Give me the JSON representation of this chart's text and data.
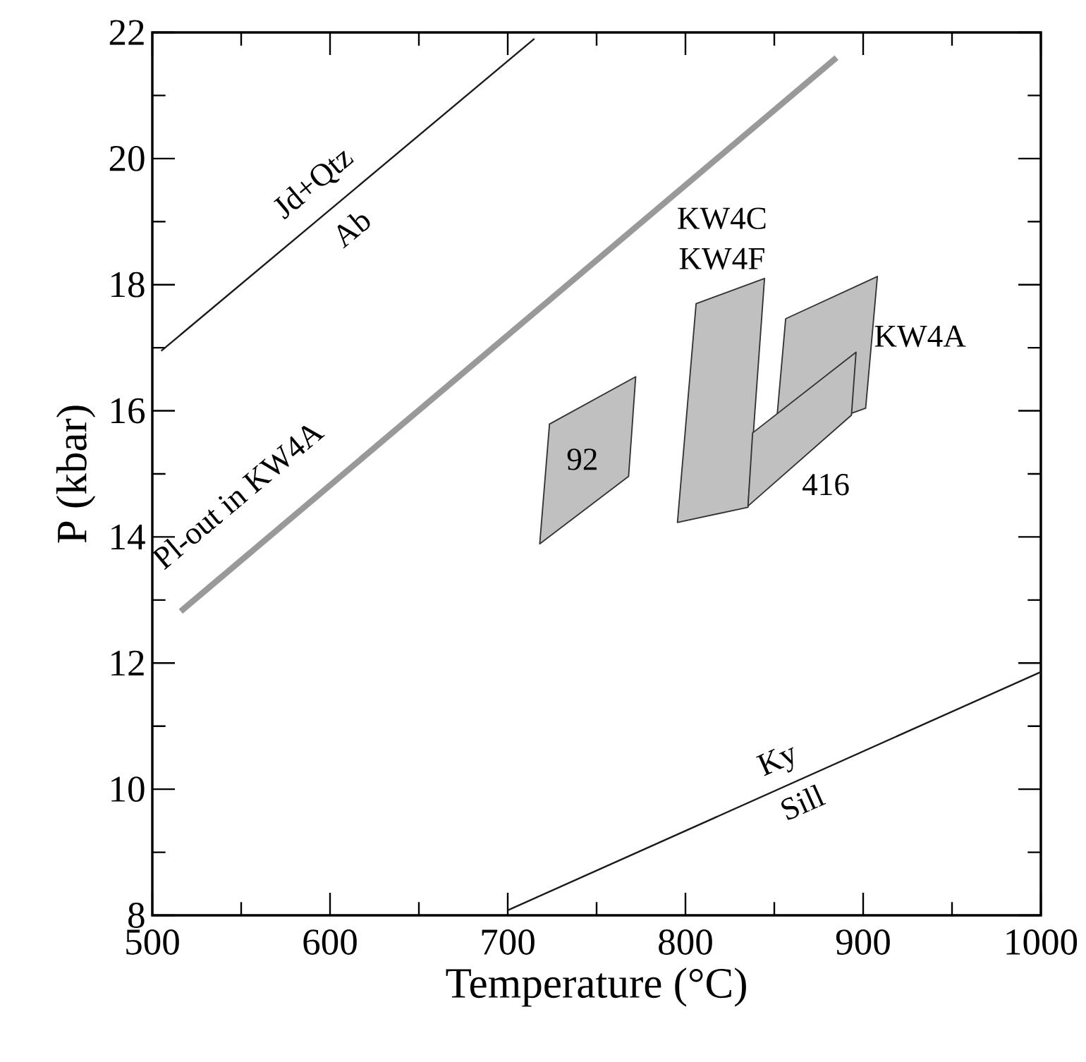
{
  "chart_data": {
    "type": "line",
    "xlabel": "Temperature (°C)",
    "ylabel": "P (kbar)",
    "xlim": [
      500,
      1000
    ],
    "ylim": [
      8,
      22
    ],
    "xticks": [
      500,
      {
        "value": 550,
        "label": null
      },
      600,
      {
        "value": 650,
        "label": null
      },
      700,
      {
        "value": 750,
        "label": null
      },
      800,
      {
        "value": 850,
        "label": null
      },
      900,
      {
        "value": 950,
        "label": null
      },
      1000
    ],
    "yticks": [
      8,
      {
        "value": 9,
        "label": null
      },
      10,
      {
        "value": 11,
        "label": null
      },
      12,
      {
        "value": 13,
        "label": null
      },
      14,
      {
        "value": 15,
        "label": null
      },
      16,
      {
        "value": 17,
        "label": null
      },
      18,
      {
        "value": 19,
        "label": null
      },
      20,
      {
        "value": 21,
        "label": null
      },
      22
    ],
    "series": [
      {
        "color": "#1a1a1a",
        "x": [
          505,
          715
        ],
        "values": [
          16.95,
          21.9
        ]
      },
      {
        "color": "#999999",
        "x": [
          516,
          885
        ],
        "values": [
          12.82,
          21.6
        ]
      },
      {
        "color": "#1a1a1a",
        "x": [
          700,
          1000
        ],
        "values": [
          8.08,
          11.86
        ]
      },
      {
        "type": "area",
        "color": "#c0c0c0",
        "x": [
          718,
          723.5,
          772,
          768
        ],
        "values": [
          13.89,
          15.79,
          16.54,
          14.96
        ]
      },
      {
        "type": "area",
        "color": "#c0c0c0",
        "x": [
          806,
          844.5,
          835.2,
          795.5
        ],
        "values": [
          17.7,
          18.1,
          14.47,
          14.23
        ]
      },
      {
        "type": "area",
        "color": "#c0c0c0",
        "x": [
          851.6,
          856.4,
          908,
          901.4,
          893.4
        ],
        "values": [
          15.93,
          17.46,
          18.13,
          16.04,
          15.96
        ]
      },
      {
        "type": "area",
        "color": "#c0c0c0",
        "x": [
          837.8,
          896,
          893.4,
          835.2
        ],
        "values": [
          15.65,
          16.93,
          15.93,
          14.49
        ]
      }
    ],
    "annotations": [
      "Jd+Qtz",
      "Ab",
      "Pl-out in KW4A",
      "92",
      "KW4C",
      "KW4F",
      "KW4A",
      "416",
      "Ky",
      "Sill"
    ]
  }
}
